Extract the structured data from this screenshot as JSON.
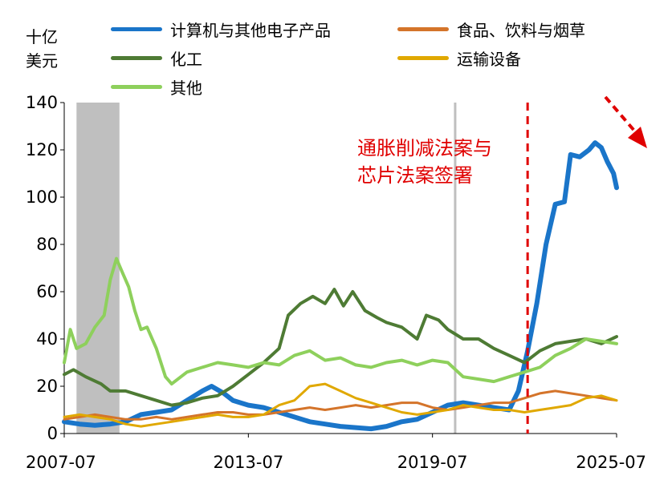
{
  "chart_data": {
    "type": "line",
    "unit_label": [
      "十亿",
      "美元"
    ],
    "ylim": [
      0,
      140
    ],
    "yticks": [
      "0",
      "20",
      "40",
      "60",
      "80",
      "100",
      "120",
      "140"
    ],
    "xticks": [
      {
        "label": "2007-07",
        "x": 2007.5
      },
      {
        "label": "2013-07",
        "x": 2013.5
      },
      {
        "label": "2019-07",
        "x": 2019.5
      },
      {
        "label": "2025-07",
        "x": 2025.5
      }
    ],
    "xlim": [
      2007.5,
      2025.5
    ],
    "shaded_periods": [
      [
        2007.9,
        2009.3
      ],
      [
        2020.2,
        2020.25
      ]
    ],
    "event_line": {
      "x": 2022.6,
      "label": [
        "通胀削减法案与",
        "芯片法案签署"
      ],
      "color": "#e00000"
    },
    "trend_arrow_color": "#e00000",
    "series": [
      {
        "name": "计算机与其他电子产品",
        "color": "#1a75c9",
        "width": 6,
        "points": [
          [
            2007.5,
            5
          ],
          [
            2008.0,
            4
          ],
          [
            2008.5,
            3.5
          ],
          [
            2009.0,
            4
          ],
          [
            2009.5,
            5
          ],
          [
            2010.0,
            8
          ],
          [
            2010.5,
            9
          ],
          [
            2011.0,
            10
          ],
          [
            2011.5,
            14
          ],
          [
            2012.0,
            18
          ],
          [
            2012.3,
            20
          ],
          [
            2012.7,
            17
          ],
          [
            2013.0,
            14
          ],
          [
            2013.5,
            12
          ],
          [
            2014.0,
            11
          ],
          [
            2014.5,
            9
          ],
          [
            2015.0,
            7
          ],
          [
            2015.5,
            5
          ],
          [
            2016.0,
            4
          ],
          [
            2016.5,
            3
          ],
          [
            2017.0,
            2.5
          ],
          [
            2017.5,
            2
          ],
          [
            2018.0,
            3
          ],
          [
            2018.5,
            5
          ],
          [
            2019.0,
            6
          ],
          [
            2019.5,
            9
          ],
          [
            2020.0,
            12
          ],
          [
            2020.5,
            13
          ],
          [
            2021.0,
            12
          ],
          [
            2021.5,
            11
          ],
          [
            2022.0,
            10
          ],
          [
            2022.3,
            18
          ],
          [
            2022.6,
            35
          ],
          [
            2022.9,
            55
          ],
          [
            2023.2,
            80
          ],
          [
            2023.5,
            97
          ],
          [
            2023.8,
            98
          ],
          [
            2024.0,
            118
          ],
          [
            2024.3,
            117
          ],
          [
            2024.6,
            120
          ],
          [
            2024.8,
            123
          ],
          [
            2025.0,
            121
          ],
          [
            2025.2,
            115
          ],
          [
            2025.4,
            110
          ],
          [
            2025.5,
            104
          ]
        ]
      },
      {
        "name": "食品、饮料与烟草",
        "color": "#d4742a",
        "width": 3,
        "points": [
          [
            2007.5,
            6
          ],
          [
            2008.0,
            7
          ],
          [
            2008.5,
            8
          ],
          [
            2009.0,
            7
          ],
          [
            2009.5,
            6
          ],
          [
            2010.0,
            6
          ],
          [
            2010.5,
            7
          ],
          [
            2011.0,
            6
          ],
          [
            2011.5,
            7
          ],
          [
            2012.0,
            8
          ],
          [
            2012.5,
            9
          ],
          [
            2013.0,
            9
          ],
          [
            2013.5,
            8
          ],
          [
            2014.0,
            8
          ],
          [
            2014.5,
            9
          ],
          [
            2015.0,
            10
          ],
          [
            2015.5,
            11
          ],
          [
            2016.0,
            10
          ],
          [
            2016.5,
            11
          ],
          [
            2017.0,
            12
          ],
          [
            2017.5,
            11
          ],
          [
            2018.0,
            12
          ],
          [
            2018.5,
            13
          ],
          [
            2019.0,
            13
          ],
          [
            2019.5,
            11
          ],
          [
            2020.0,
            10
          ],
          [
            2020.5,
            11
          ],
          [
            2021.0,
            12
          ],
          [
            2021.5,
            13
          ],
          [
            2022.0,
            13
          ],
          [
            2022.5,
            15
          ],
          [
            2023.0,
            17
          ],
          [
            2023.5,
            18
          ],
          [
            2024.0,
            17
          ],
          [
            2024.5,
            16
          ],
          [
            2025.0,
            15
          ],
          [
            2025.5,
            14
          ]
        ]
      },
      {
        "name": "化工",
        "color": "#4e7b34",
        "width": 4,
        "points": [
          [
            2007.5,
            25
          ],
          [
            2007.8,
            27
          ],
          [
            2008.2,
            24
          ],
          [
            2008.7,
            21
          ],
          [
            2009.0,
            18
          ],
          [
            2009.5,
            18
          ],
          [
            2010.0,
            16
          ],
          [
            2010.5,
            14
          ],
          [
            2011.0,
            12
          ],
          [
            2011.5,
            13
          ],
          [
            2012.0,
            15
          ],
          [
            2012.5,
            16
          ],
          [
            2013.0,
            20
          ],
          [
            2013.5,
            25
          ],
          [
            2014.0,
            30
          ],
          [
            2014.5,
            36
          ],
          [
            2014.8,
            50
          ],
          [
            2015.2,
            55
          ],
          [
            2015.6,
            58
          ],
          [
            2016.0,
            55
          ],
          [
            2016.3,
            61
          ],
          [
            2016.6,
            54
          ],
          [
            2016.9,
            60
          ],
          [
            2017.3,
            52
          ],
          [
            2017.7,
            49
          ],
          [
            2018.0,
            47
          ],
          [
            2018.5,
            45
          ],
          [
            2019.0,
            40
          ],
          [
            2019.3,
            50
          ],
          [
            2019.7,
            48
          ],
          [
            2020.0,
            44
          ],
          [
            2020.5,
            40
          ],
          [
            2021.0,
            40
          ],
          [
            2021.5,
            36
          ],
          [
            2022.0,
            33
          ],
          [
            2022.5,
            30
          ],
          [
            2023.0,
            35
          ],
          [
            2023.5,
            38
          ],
          [
            2024.0,
            39
          ],
          [
            2024.5,
            40
          ],
          [
            2025.0,
            38
          ],
          [
            2025.5,
            41
          ]
        ]
      },
      {
        "name": "运输设备",
        "color": "#e0a800",
        "width": 3,
        "points": [
          [
            2007.5,
            7
          ],
          [
            2008.0,
            8
          ],
          [
            2008.5,
            7
          ],
          [
            2009.0,
            6
          ],
          [
            2009.5,
            4
          ],
          [
            2010.0,
            3
          ],
          [
            2010.5,
            4
          ],
          [
            2011.0,
            5
          ],
          [
            2011.5,
            6
          ],
          [
            2012.0,
            7
          ],
          [
            2012.5,
            8
          ],
          [
            2013.0,
            7
          ],
          [
            2013.5,
            7
          ],
          [
            2014.0,
            8
          ],
          [
            2014.5,
            12
          ],
          [
            2015.0,
            14
          ],
          [
            2015.5,
            20
          ],
          [
            2016.0,
            21
          ],
          [
            2016.5,
            18
          ],
          [
            2017.0,
            15
          ],
          [
            2017.5,
            13
          ],
          [
            2018.0,
            11
          ],
          [
            2018.5,
            9
          ],
          [
            2019.0,
            8
          ],
          [
            2019.5,
            9
          ],
          [
            2020.0,
            10
          ],
          [
            2020.5,
            12
          ],
          [
            2021.0,
            11
          ],
          [
            2021.5,
            10
          ],
          [
            2022.0,
            10
          ],
          [
            2022.5,
            9
          ],
          [
            2023.0,
            10
          ],
          [
            2023.5,
            11
          ],
          [
            2024.0,
            12
          ],
          [
            2024.5,
            15
          ],
          [
            2025.0,
            16
          ],
          [
            2025.5,
            14
          ]
        ]
      },
      {
        "name": "其他",
        "color": "#8ed05c",
        "width": 4,
        "points": [
          [
            2007.5,
            30
          ],
          [
            2007.7,
            44
          ],
          [
            2007.9,
            36
          ],
          [
            2008.2,
            38
          ],
          [
            2008.5,
            45
          ],
          [
            2008.8,
            50
          ],
          [
            2009.0,
            65
          ],
          [
            2009.2,
            74
          ],
          [
            2009.4,
            68
          ],
          [
            2009.6,
            62
          ],
          [
            2009.8,
            52
          ],
          [
            2010.0,
            44
          ],
          [
            2010.2,
            45
          ],
          [
            2010.5,
            36
          ],
          [
            2010.8,
            24
          ],
          [
            2011.0,
            21
          ],
          [
            2011.5,
            26
          ],
          [
            2012.0,
            28
          ],
          [
            2012.5,
            30
          ],
          [
            2013.0,
            29
          ],
          [
            2013.5,
            28
          ],
          [
            2014.0,
            30
          ],
          [
            2014.5,
            29
          ],
          [
            2015.0,
            33
          ],
          [
            2015.5,
            35
          ],
          [
            2016.0,
            31
          ],
          [
            2016.5,
            32
          ],
          [
            2017.0,
            29
          ],
          [
            2017.5,
            28
          ],
          [
            2018.0,
            30
          ],
          [
            2018.5,
            31
          ],
          [
            2019.0,
            29
          ],
          [
            2019.5,
            31
          ],
          [
            2020.0,
            30
          ],
          [
            2020.5,
            24
          ],
          [
            2021.0,
            23
          ],
          [
            2021.5,
            22
          ],
          [
            2022.0,
            24
          ],
          [
            2022.5,
            26
          ],
          [
            2023.0,
            28
          ],
          [
            2023.5,
            33
          ],
          [
            2024.0,
            36
          ],
          [
            2024.5,
            40
          ],
          [
            2025.0,
            39
          ],
          [
            2025.5,
            38
          ]
        ]
      }
    ]
  }
}
